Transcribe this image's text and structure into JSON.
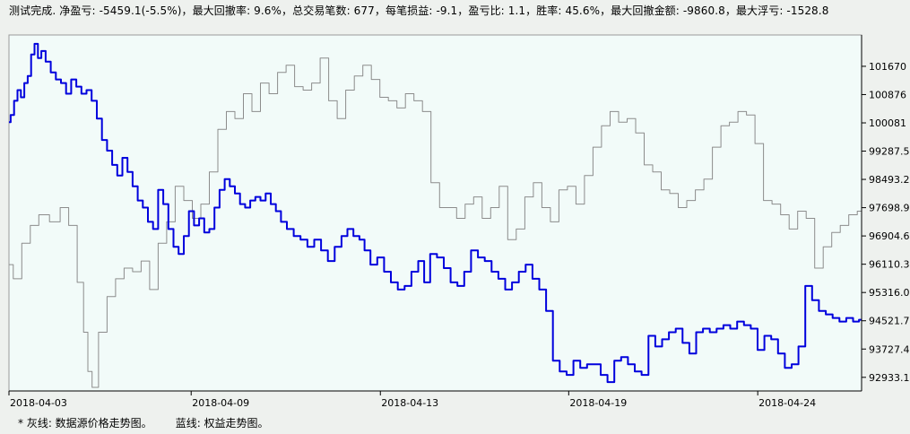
{
  "summary_text": "测试完成. 净盈亏: -5459.1(-5.5%)，最大回撤率: 9.6%，总交易笔数: 677，每笔损益: -9.1，盈亏比: 1.1，胜率: 45.6%，最大回撤金额: -9860.8，最大浮亏: -1528.8",
  "legend": {
    "gray_line": "* 灰线: 数据源价格走势图。",
    "blue_line": "蓝线: 权益走势图。"
  },
  "colors": {
    "plot_background": "#f2fbf9",
    "gray_series": "#8c8c8c",
    "blue_series": "#0000dd",
    "axis": "#000000"
  },
  "chart_data": {
    "type": "line",
    "title": "",
    "xlabel": "",
    "ylabel": "",
    "x_tick_labels": [
      "2018-04-03",
      "2018-04-09",
      "2018-04-13",
      "2018-04-19",
      "2018-04-24"
    ],
    "x_tick_positions": [
      0,
      0.2137,
      0.4356,
      0.6565,
      0.8782
    ],
    "y_tick_labels": [
      "101670",
      "100876",
      "100081",
      "99287.5",
      "98493.2",
      "97698.9",
      "96904.6",
      "96110.3",
      "95316.0",
      "94521.7",
      "93727.4",
      "92933.1"
    ],
    "y_ticks": [
      101670,
      100876,
      100081,
      99287.5,
      98493.2,
      97698.9,
      96904.6,
      96110.3,
      95316.0,
      94521.7,
      93727.4,
      92933.1
    ],
    "ylim": [
      92550,
      102550
    ],
    "grid": false,
    "series": [
      {
        "key": "price",
        "x": [
          0,
          0.01,
          0.02,
          0.03,
          0.04,
          0.055,
          0.065,
          0.075,
          0.085,
          0.09,
          0.095,
          0.1,
          0.11,
          0.12,
          0.13,
          0.14,
          0.15,
          0.16,
          0.17,
          0.18,
          0.19,
          0.2,
          0.21,
          0.22,
          0.23,
          0.24,
          0.25,
          0.26,
          0.27,
          0.28,
          0.29,
          0.3,
          0.31,
          0.32,
          0.33,
          0.34,
          0.35,
          0.36,
          0.37,
          0.38,
          0.39,
          0.4,
          0.41,
          0.42,
          0.43,
          0.44,
          0.45,
          0.46,
          0.47,
          0.48,
          0.49,
          0.5,
          0.51,
          0.52,
          0.53,
          0.54,
          0.55,
          0.56,
          0.57,
          0.58,
          0.59,
          0.6,
          0.61,
          0.62,
          0.63,
          0.64,
          0.65,
          0.66,
          0.67,
          0.68,
          0.69,
          0.7,
          0.71,
          0.72,
          0.73,
          0.74,
          0.75,
          0.76,
          0.77,
          0.78,
          0.79,
          0.8,
          0.81,
          0.82,
          0.83,
          0.84,
          0.85,
          0.86,
          0.87,
          0.88,
          0.89,
          0.9,
          0.91,
          0.92,
          0.93,
          0.94,
          0.95,
          0.96,
          0.97,
          0.98,
          0.99,
          1.0
        ],
        "y": [
          96100,
          95700,
          96700,
          97200,
          97500,
          97300,
          97700,
          97200,
          95600,
          94200,
          93100,
          92650,
          94200,
          95200,
          95700,
          96000,
          95900,
          96200,
          95400,
          96700,
          97300,
          98300,
          97900,
          97400,
          97800,
          98700,
          99900,
          100400,
          100200,
          100900,
          100400,
          101200,
          100900,
          101500,
          101700,
          101100,
          101000,
          101200,
          101900,
          100700,
          100200,
          101000,
          101400,
          101700,
          101300,
          100800,
          100700,
          100500,
          100900,
          100700,
          100400,
          98400,
          97700,
          97700,
          97400,
          97800,
          98000,
          97400,
          97700,
          98300,
          96800,
          97100,
          98000,
          98400,
          97700,
          97300,
          98200,
          98300,
          97800,
          98600,
          99400,
          100000,
          100400,
          100100,
          100200,
          99800,
          98900,
          98700,
          98200,
          98100,
          97700,
          97900,
          98200,
          98500,
          99400,
          100000,
          100100,
          100400,
          100300,
          99500,
          97900,
          97800,
          97500,
          97100,
          97600,
          97400,
          96000,
          96600,
          97000,
          97200,
          97500,
          97600
        ]
      },
      {
        "key": "equity",
        "x": [
          0,
          0.004,
          0.008,
          0.012,
          0.016,
          0.02,
          0.024,
          0.028,
          0.032,
          0.036,
          0.04,
          0.046,
          0.052,
          0.058,
          0.064,
          0.07,
          0.076,
          0.082,
          0.088,
          0.094,
          0.1,
          0.106,
          0.112,
          0.118,
          0.124,
          0.13,
          0.136,
          0.142,
          0.148,
          0.154,
          0.16,
          0.166,
          0.172,
          0.178,
          0.184,
          0.19,
          0.196,
          0.202,
          0.208,
          0.214,
          0.22,
          0.226,
          0.232,
          0.238,
          0.244,
          0.25,
          0.256,
          0.262,
          0.268,
          0.274,
          0.28,
          0.286,
          0.292,
          0.298,
          0.304,
          0.31,
          0.316,
          0.322,
          0.33,
          0.338,
          0.346,
          0.354,
          0.362,
          0.37,
          0.378,
          0.386,
          0.394,
          0.4,
          0.408,
          0.414,
          0.42,
          0.428,
          0.436,
          0.444,
          0.452,
          0.46,
          0.468,
          0.476,
          0.484,
          0.49,
          0.498,
          0.506,
          0.514,
          0.522,
          0.53,
          0.538,
          0.546,
          0.554,
          0.562,
          0.57,
          0.578,
          0.586,
          0.594,
          0.602,
          0.61,
          0.618,
          0.626,
          0.634,
          0.642,
          0.65,
          0.658,
          0.666,
          0.674,
          0.682,
          0.69,
          0.698,
          0.706,
          0.714,
          0.722,
          0.73,
          0.738,
          0.746,
          0.754,
          0.762,
          0.77,
          0.778,
          0.786,
          0.794,
          0.802,
          0.81,
          0.818,
          0.826,
          0.834,
          0.842,
          0.85,
          0.858,
          0.866,
          0.874,
          0.882,
          0.89,
          0.898,
          0.906,
          0.914,
          0.922,
          0.93,
          0.938,
          0.946,
          0.954,
          0.962,
          0.97,
          0.978,
          0.986,
          0.994,
          1.0
        ],
        "y": [
          100100,
          100300,
          100700,
          101000,
          100800,
          101200,
          101400,
          102000,
          102300,
          101900,
          102100,
          101800,
          101500,
          101300,
          101200,
          100900,
          101300,
          101100,
          100900,
          101000,
          100700,
          100200,
          99600,
          99300,
          98900,
          98600,
          99100,
          98700,
          98300,
          97900,
          97700,
          97300,
          97100,
          98200,
          97800,
          97100,
          96600,
          96400,
          96900,
          97600,
          97200,
          97400,
          97000,
          97100,
          97700,
          98200,
          98500,
          98300,
          98100,
          97800,
          97700,
          97900,
          98000,
          97900,
          98100,
          97800,
          97600,
          97300,
          97100,
          96900,
          96800,
          96600,
          96800,
          96500,
          96200,
          96600,
          96900,
          97100,
          96900,
          96800,
          96500,
          96100,
          96300,
          95900,
          95600,
          95400,
          95500,
          95900,
          96200,
          95600,
          96400,
          96300,
          96000,
          95600,
          95500,
          95900,
          96500,
          96300,
          96200,
          95900,
          95700,
          95400,
          95600,
          95900,
          96100,
          95700,
          95400,
          94800,
          93400,
          93100,
          93000,
          93400,
          93200,
          93300,
          93300,
          93000,
          92800,
          93400,
          93500,
          93300,
          93100,
          93000,
          94100,
          93800,
          94000,
          94200,
          94300,
          93900,
          93600,
          94200,
          94300,
          94200,
          94300,
          94400,
          94300,
          94500,
          94400,
          94300,
          93700,
          94100,
          94000,
          93600,
          93200,
          93300,
          93800,
          95500,
          95100,
          94800,
          94700,
          94600,
          94500,
          94600,
          94500,
          94550
        ]
      }
    ]
  }
}
